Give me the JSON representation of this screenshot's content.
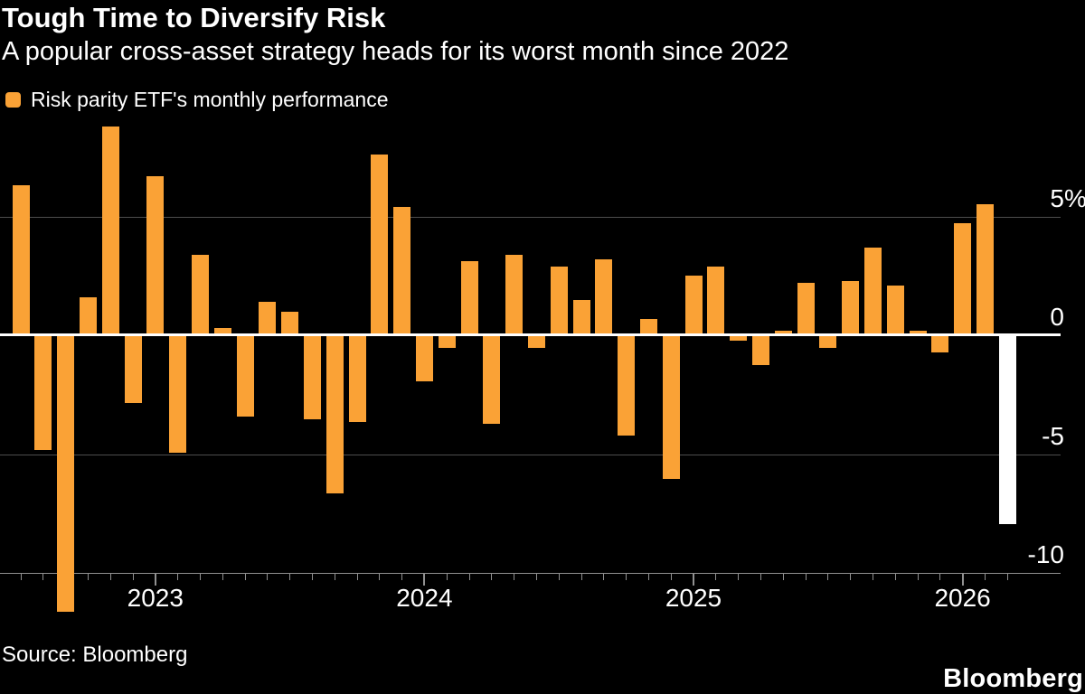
{
  "title": "Tough Time to Diversify Risk",
  "subtitle": "A popular cross-asset strategy heads for its worst month since 2022",
  "legend": {
    "label": "Risk parity ETF's monthly performance",
    "swatch_color": "#FAA236"
  },
  "source": "Source: Bloomberg",
  "brand": "Bloomberg",
  "colors": {
    "background": "#000000",
    "bar": "#FAA236",
    "highlight_bar": "#FFFFFF",
    "gridline": "#4D4D4D",
    "zero_line": "#FFFFFF",
    "axis": "#909090",
    "text": "#FFFFFF"
  },
  "chart_data": {
    "type": "bar",
    "title": "Tough Time to Diversify Risk",
    "subtitle": "A popular cross-asset strategy heads for its worst month since 2022",
    "series_name": "Risk parity ETF's monthly performance",
    "unit": "%",
    "ylim": [
      -12.5,
      9.5
    ],
    "grid": true,
    "legend_position": "top-left",
    "y_ticks": [
      {
        "label": "5%",
        "value": 5
      },
      {
        "label": "0",
        "value": 0
      },
      {
        "label": "-5",
        "value": -5
      },
      {
        "label": "-10",
        "value": -10
      }
    ],
    "x_year_labels": [
      "2023",
      "2024",
      "2025",
      "2026"
    ],
    "highlight_month": "Mar 2026",
    "points": [
      {
        "m": "Jul 2022",
        "v": 6.3
      },
      {
        "m": "Aug 2022",
        "v": -4.8
      },
      {
        "m": "Sep 2022",
        "v": -11.6
      },
      {
        "m": "Oct 2022",
        "v": 1.6
      },
      {
        "m": "Nov 2022",
        "v": 8.8
      },
      {
        "m": "Dec 2022",
        "v": -2.8
      },
      {
        "m": "Jan 2023",
        "v": 6.7
      },
      {
        "m": "Feb 2023",
        "v": -4.9
      },
      {
        "m": "Mar 2023",
        "v": 3.4
      },
      {
        "m": "Apr 2023",
        "v": 0.3
      },
      {
        "m": "May 2023",
        "v": -3.4
      },
      {
        "m": "Jun 2023",
        "v": 1.4
      },
      {
        "m": "Jul 2023",
        "v": 1.0
      },
      {
        "m": "Aug 2023",
        "v": -3.5
      },
      {
        "m": "Sep 2023",
        "v": -6.6
      },
      {
        "m": "Oct 2023",
        "v": -3.6
      },
      {
        "m": "Nov 2023",
        "v": 7.6
      },
      {
        "m": "Dec 2023",
        "v": 5.4
      },
      {
        "m": "Jan 2024",
        "v": -1.9
      },
      {
        "m": "Feb 2024",
        "v": -0.5
      },
      {
        "m": "Mar 2024",
        "v": 3.1
      },
      {
        "m": "Apr 2024",
        "v": -3.7
      },
      {
        "m": "May 2024",
        "v": 3.4
      },
      {
        "m": "Jun 2024",
        "v": -0.5
      },
      {
        "m": "Jul 2024",
        "v": 2.9
      },
      {
        "m": "Aug 2024",
        "v": 1.5
      },
      {
        "m": "Sep 2024",
        "v": 3.2
      },
      {
        "m": "Oct 2024",
        "v": -4.2
      },
      {
        "m": "Nov 2024",
        "v": 0.7
      },
      {
        "m": "Dec 2024",
        "v": -6.0
      },
      {
        "m": "Jan 2025",
        "v": 2.5
      },
      {
        "m": "Feb 2025",
        "v": 2.9
      },
      {
        "m": "Mar 2025",
        "v": -0.2
      },
      {
        "m": "Apr 2025",
        "v": -1.2
      },
      {
        "m": "May 2025",
        "v": 0.2
      },
      {
        "m": "Jun 2025",
        "v": 2.2
      },
      {
        "m": "Jul 2025",
        "v": -0.5
      },
      {
        "m": "Aug 2025",
        "v": 2.3
      },
      {
        "m": "Sep 2025",
        "v": 3.7
      },
      {
        "m": "Oct 2025",
        "v": 2.1
      },
      {
        "m": "Nov 2025",
        "v": 0.2
      },
      {
        "m": "Dec 2025",
        "v": -0.7
      },
      {
        "m": "Jan 2026",
        "v": 4.7
      },
      {
        "m": "Feb 2026",
        "v": 5.5
      },
      {
        "m": "Mar 2026",
        "v": -7.9
      }
    ]
  }
}
